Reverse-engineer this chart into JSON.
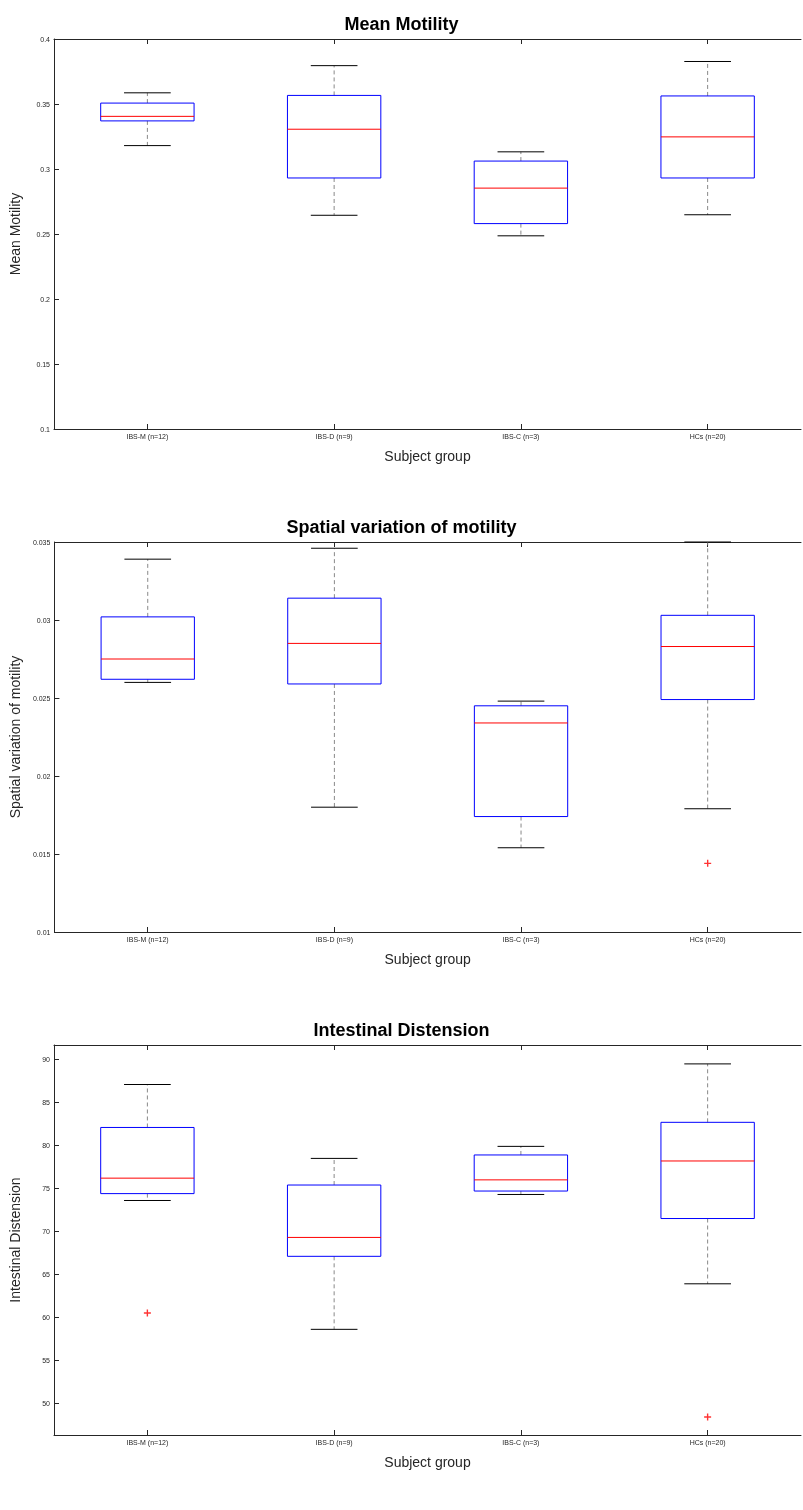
{
  "chart_data": [
    {
      "type": "box",
      "title": "Mean Motility",
      "xlabel": "Subject group",
      "ylabel": "Mean Motility",
      "categories": [
        "IBS-M (n=12)",
        "IBS-D (n=9)",
        "IBS-C (n=3)",
        "HCs (n=20)"
      ],
      "ylim": [
        0.1,
        0.4
      ],
      "yticks": [
        0.1,
        0.15,
        0.2,
        0.25,
        0.3,
        0.35,
        0.4
      ],
      "grid": false,
      "marker": "cross",
      "series": [
        {
          "color": "#0000ff",
          "boxes": [
            {
              "low": 0.318,
              "q1": 0.337,
              "median": 0.3405,
              "q3": 0.3507,
              "high": 0.3586
            },
            {
              "low": 0.2644,
              "q1": 0.2931,
              "median": 0.3306,
              "q3": 0.3566,
              "high": 0.3795
            },
            {
              "low": 0.2486,
              "q1": 0.258,
              "median": 0.2853,
              "q3": 0.3061,
              "high": 0.3132
            },
            {
              "low": 0.2648,
              "q1": 0.2931,
              "median": 0.3247,
              "q3": 0.3562,
              "high": 0.3827
            }
          ]
        }
      ]
    },
    {
      "type": "box",
      "title": "Spatial variation of motility",
      "xlabel": "Subject group",
      "ylabel": "Spatial variation of motility",
      "categories": [
        "IBS-M (n=12)",
        "IBS-D (n=9)",
        "IBS-C (n=3)",
        "HCs (n=20)"
      ],
      "ylim": [
        0.01,
        0.035
      ],
      "yticks": [
        0.01,
        0.015,
        0.02,
        0.025,
        0.03,
        0.035
      ],
      "grid": false,
      "marker": "cross",
      "series": [
        {
          "color": "#0000ff",
          "boxes": [
            {
              "low": 0.026,
              "q1": 0.0262,
              "median": 0.0275,
              "q3": 0.0302,
              "high": 0.0339
            },
            {
              "low": 0.018,
              "q1": 0.0259,
              "median": 0.0285,
              "q3": 0.0314,
              "high": 0.0346
            },
            {
              "low": 0.0154,
              "q1": 0.0174,
              "median": 0.0234,
              "q3": 0.0245,
              "high": 0.0248
            },
            {
              "low": 0.0179,
              "q1": 0.0249,
              "median": 0.0283,
              "q3": 0.0303,
              "high": 0.035,
              "outliers": [
                0.0144
              ]
            }
          ]
        }
      ]
    },
    {
      "type": "box",
      "title": "Intestinal Distension",
      "xlabel": "Subject group",
      "ylabel": "Intestinal Distension",
      "categories": [
        "IBS-M (n=12)",
        "IBS-D (n=9)",
        "IBS-C (n=3)",
        "HCs (n=20)"
      ],
      "ylim": [
        46.3,
        91.7
      ],
      "yticks": [
        50,
        55,
        60,
        65,
        70,
        75,
        80,
        85,
        90
      ],
      "grid": false,
      "marker": "cross",
      "series": [
        {
          "color": "#0000ff",
          "boxes": [
            {
              "low": 73.6,
              "q1": 74.4,
              "median": 76.2,
              "q3": 82.1,
              "high": 87.1,
              "outliers": [
                60.5
              ]
            },
            {
              "low": 58.6,
              "q1": 67.1,
              "median": 69.3,
              "q3": 75.4,
              "high": 78.5
            },
            {
              "low": 74.3,
              "q1": 74.7,
              "median": 76.0,
              "q3": 78.9,
              "high": 79.9
            },
            {
              "low": 63.9,
              "q1": 71.5,
              "median": 78.2,
              "q3": 82.7,
              "high": 89.5,
              "outliers": [
                48.4
              ]
            }
          ]
        }
      ]
    }
  ]
}
